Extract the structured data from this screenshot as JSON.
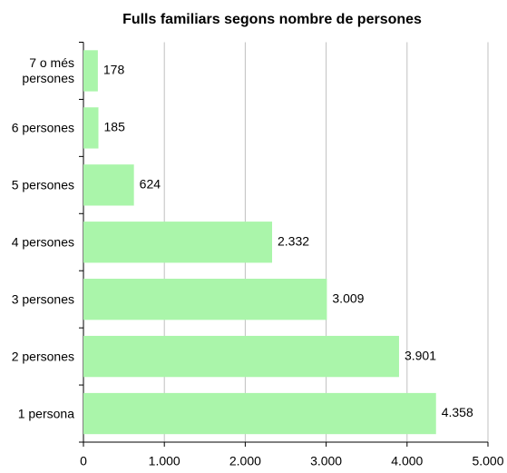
{
  "chart_data": {
    "type": "barh",
    "title": "Fulls familiars segons nombre de persones",
    "categories": [
      "7 o més persones",
      "6 persones",
      "5 persones",
      "4 persones",
      "3 persones",
      "2 persones",
      "1 persona"
    ],
    "values": [
      178,
      185,
      624,
      2332,
      3009,
      3901,
      4358
    ],
    "value_labels": [
      "178",
      "185",
      "624",
      "2.332",
      "3.009",
      "3.901",
      "4.358"
    ],
    "color": "#aaf5aa",
    "xlim": [
      0,
      5000
    ],
    "xticks": [
      0,
      {
        "value": 1000,
        "label": "1.000"
      },
      {
        "value": 2000,
        "label": "2.000"
      },
      {
        "value": 3000,
        "label": "3.000"
      },
      {
        "value": 4000,
        "label": "4.000"
      },
      {
        "value": 5000,
        "label": "5.000"
      }
    ],
    "grid": true
  }
}
